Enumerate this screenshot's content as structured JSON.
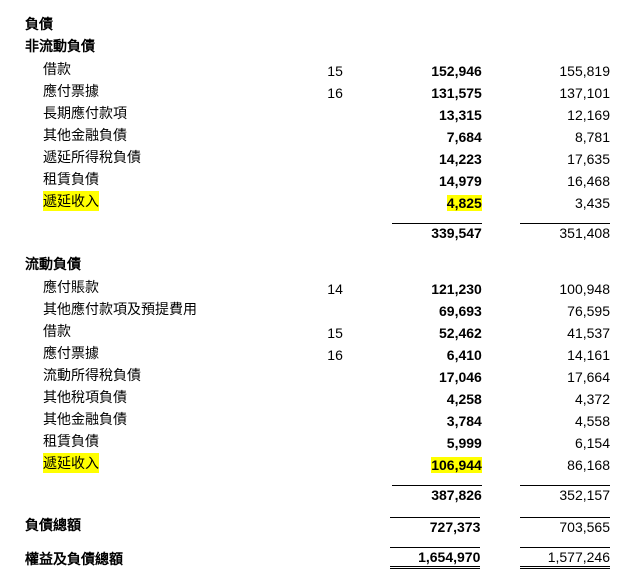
{
  "sections": {
    "liabilities": "負債",
    "nonCurrentLiabilities": "非流動負債",
    "currentLiabilities": "流動負債"
  },
  "nonCurrent": {
    "rows": [
      {
        "label": "借款",
        "note": "15",
        "v1": "152,946",
        "v2": "155,819"
      },
      {
        "label": "應付票據",
        "note": "16",
        "v1": "131,575",
        "v2": "137,101"
      },
      {
        "label": "長期應付款項",
        "note": "",
        "v1": "13,315",
        "v2": "12,169"
      },
      {
        "label": "其他金融負債",
        "note": "",
        "v1": "7,684",
        "v2": "8,781"
      },
      {
        "label": "遞延所得稅負債",
        "note": "",
        "v1": "14,223",
        "v2": "17,635"
      },
      {
        "label": "租賃負債",
        "note": "",
        "v1": "14,979",
        "v2": "16,468"
      },
      {
        "label": "遞延收入",
        "note": "",
        "v1": "4,825",
        "v2": "3,435",
        "hl": true
      }
    ],
    "subtotal": {
      "v1": "339,547",
      "v2": "351,408"
    }
  },
  "current": {
    "rows": [
      {
        "label": "應付賬款",
        "note": "14",
        "v1": "121,230",
        "v2": "100,948"
      },
      {
        "label": "其他應付款項及預提費用",
        "note": "",
        "v1": "69,693",
        "v2": "76,595"
      },
      {
        "label": "借款",
        "note": "15",
        "v1": "52,462",
        "v2": "41,537"
      },
      {
        "label": "應付票據",
        "note": "16",
        "v1": "6,410",
        "v2": "14,161"
      },
      {
        "label": "流動所得稅負債",
        "note": "",
        "v1": "17,046",
        "v2": "17,664"
      },
      {
        "label": "其他稅項負債",
        "note": "",
        "v1": "4,258",
        "v2": "4,372"
      },
      {
        "label": "其他金融負債",
        "note": "",
        "v1": "3,784",
        "v2": "4,558"
      },
      {
        "label": "租賃負債",
        "note": "",
        "v1": "5,999",
        "v2": "6,154"
      },
      {
        "label": "遞延收入",
        "note": "",
        "v1": "106,944",
        "v2": "86,168",
        "hl": true
      }
    ],
    "subtotal": {
      "v1": "387,826",
      "v2": "352,157"
    }
  },
  "totals": {
    "liabilitiesTotal": {
      "label": "負債總額",
      "v1": "727,373",
      "v2": "703,565"
    },
    "equityAndLiabilities": {
      "label": "權益及負債總額",
      "v1": "1,654,970",
      "v2": "1,577,246"
    }
  },
  "style": {
    "highlightColor": "#ffff00",
    "background": "#ffffff",
    "fontSize": 14
  }
}
